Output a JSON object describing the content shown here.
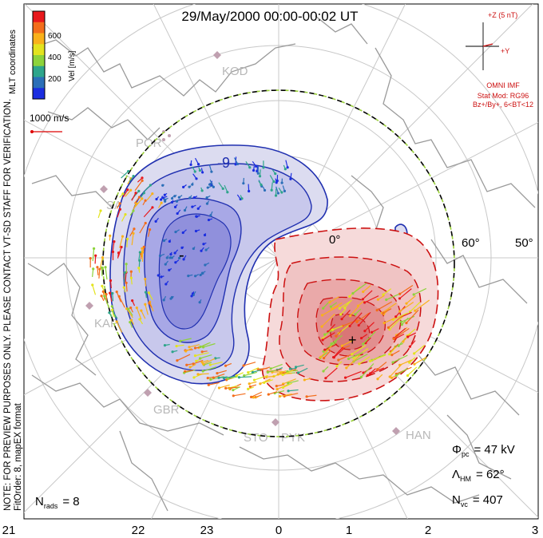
{
  "header": {
    "title": "29/May/2000 00:00-00:02 UT"
  },
  "colorbar": {
    "label": "Vel [m/s]",
    "ticks": [
      "600",
      "400",
      "200"
    ],
    "colors": [
      "#e8181c",
      "#f36d1b",
      "#f9b11a",
      "#e3e31e",
      "#8dd33b",
      "#2ea58b",
      "#2b6fb8",
      "#1b2ee0"
    ]
  },
  "side": {
    "coord_label": "MLT coordinates",
    "verification_note": "NOTE: FOR PREVIEW PURPOSES ONLY. PLEASE CONTACT VT-SD STAFF FOR VERIFICATION.",
    "fit_order": "FitOrder: 8, mapEX format"
  },
  "ref_vector": {
    "label": "1000 m/s"
  },
  "imf": {
    "scale": "+Z (5 nT)",
    "plus_y": "+Y",
    "source": "OMNI IMF",
    "stat_mod": "Stat Mod: RG96",
    "condition": "Bz+/By+, 6<BT<12"
  },
  "latitude_labels": [
    "60°",
    "50°"
  ],
  "stations": [
    "KOD",
    "POR",
    "SAS",
    "KAP",
    "GBR",
    "STO",
    "PYK",
    "HAN"
  ],
  "contour_labels": [
    "-9",
    "-",
    "+"
  ],
  "stats": {
    "phi_label": "Φ",
    "phi_sub": "pc",
    "phi_value": "= 47 kV",
    "lambda_label": "Λ",
    "lambda_sub": "HM",
    "lambda_value": "= 62°",
    "nvc_label": "N",
    "nvc_sub": "vc",
    "nvc_value": "= 407",
    "nrads_label": "N",
    "nrads_sub": "rads",
    "nrads_value": "= 8"
  },
  "mlt_axis": [
    "21",
    "22",
    "23",
    "0",
    "1",
    "2",
    "3"
  ],
  "colors": {
    "negative_cell": "#2030b0",
    "positive_cell": "#cc1010",
    "coastline": "#9a9a9a",
    "grid": "#c8c8c8"
  }
}
